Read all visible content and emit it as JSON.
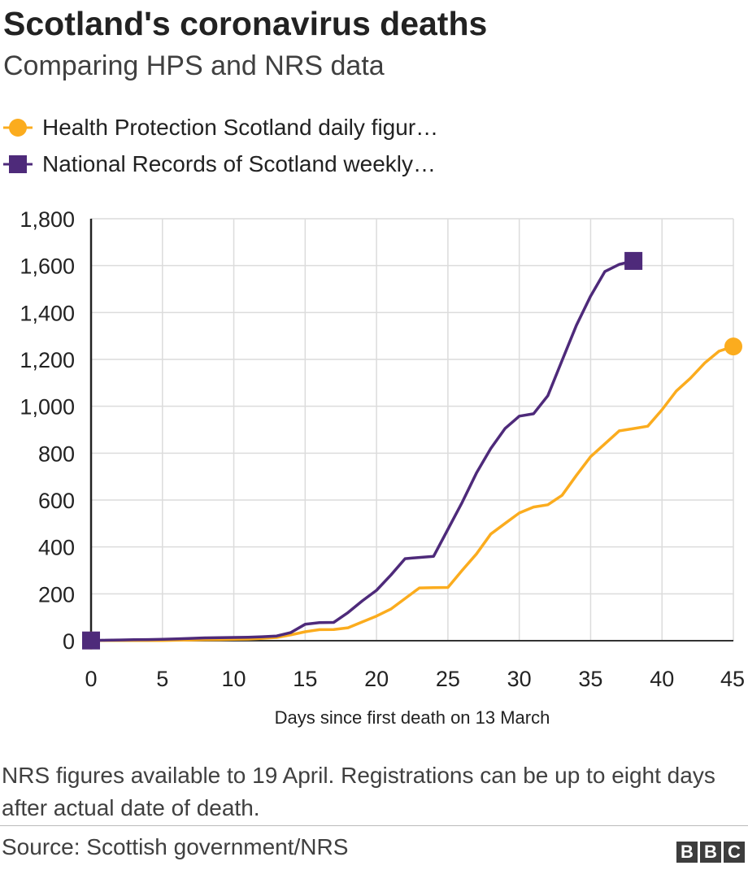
{
  "chart_data": {
    "type": "line",
    "title": "Scotland's coronavirus deaths",
    "subtitle": "Comparing HPS and NRS data",
    "xlabel": "Days since first death on 13 March",
    "ylabel": "",
    "xlim": [
      0,
      45
    ],
    "ylim": [
      0,
      1800
    ],
    "x_ticks": [
      0,
      5,
      10,
      15,
      20,
      25,
      30,
      35,
      40,
      45
    ],
    "y_ticks": [
      0,
      200,
      400,
      600,
      800,
      1000,
      1200,
      1400,
      1600,
      1800
    ],
    "y_tick_labels": [
      "0",
      "200",
      "400",
      "600",
      "800",
      "1,000",
      "1,200",
      "1,400",
      "1,600",
      "1,800"
    ],
    "grid": true,
    "series": [
      {
        "name": "Health Protection Scotland daily figur…",
        "color": "#fbac1e",
        "marker": "circle",
        "x": [
          0,
          1,
          2,
          3,
          4,
          5,
          6,
          7,
          8,
          9,
          10,
          11,
          12,
          13,
          14,
          15,
          16,
          17,
          18,
          19,
          20,
          21,
          22,
          23,
          24,
          25,
          26,
          27,
          28,
          29,
          30,
          31,
          32,
          33,
          34,
          35,
          36,
          37,
          38,
          39,
          40,
          41,
          42,
          43,
          44,
          45
        ],
        "values": [
          1,
          1,
          1,
          1,
          1,
          1,
          2,
          3,
          4,
          5,
          6,
          7,
          10,
          14,
          25,
          38,
          47,
          48,
          55,
          80,
          105,
          135,
          180,
          225,
          226,
          227,
          300,
          370,
          455,
          500,
          545,
          570,
          580,
          620,
          705,
          785,
          840,
          895,
          905,
          915,
          985,
          1065,
          1120,
          1185,
          1235,
          1255
        ]
      },
      {
        "name": "National Records of Scotland weekly…",
        "color": "#4e2a7a",
        "marker": "square",
        "x": [
          0,
          1,
          2,
          3,
          4,
          5,
          6,
          7,
          8,
          9,
          10,
          11,
          12,
          13,
          14,
          15,
          16,
          17,
          18,
          19,
          20,
          21,
          22,
          23,
          24,
          25,
          26,
          27,
          28,
          29,
          30,
          31,
          32,
          33,
          34,
          35,
          36,
          37,
          38
        ],
        "values": [
          1,
          2,
          3,
          4,
          5,
          6,
          8,
          10,
          12,
          13,
          14,
          15,
          17,
          20,
          35,
          70,
          77,
          78,
          120,
          170,
          215,
          280,
          350,
          355,
          360,
          475,
          590,
          715,
          820,
          905,
          958,
          968,
          1045,
          1195,
          1345,
          1470,
          1575,
          1605,
          1620
        ]
      }
    ]
  },
  "note": "NRS figures available to 19 April. Registrations can be up to eight days after actual date of death.",
  "source": "Source: Scottish government/NRS",
  "logo": [
    "B",
    "B",
    "C"
  ]
}
